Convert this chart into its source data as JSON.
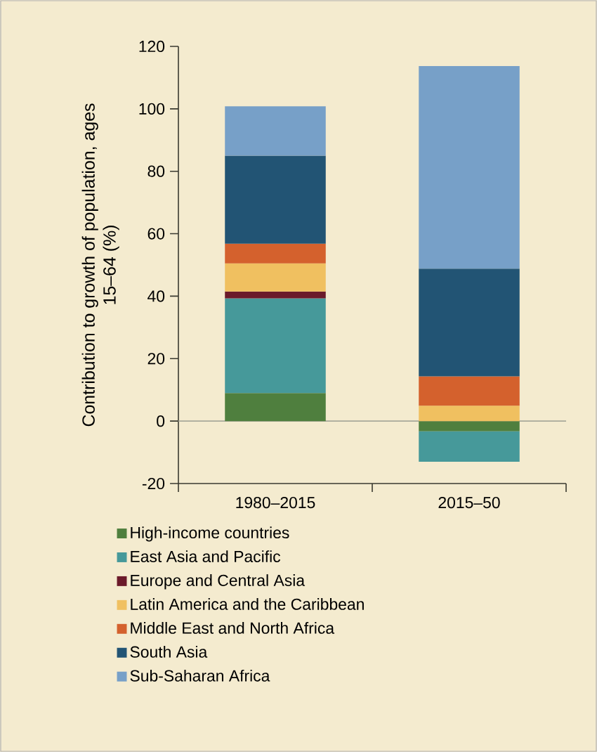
{
  "chart_data": {
    "type": "bar",
    "stacked": true,
    "ylabel": "Contribution to growth of population, ages 15–64 (%)",
    "categories": [
      "1980–2015",
      "2015–50"
    ],
    "series": [
      {
        "name": "High-income countries",
        "color": "#4f7f3e",
        "values": [
          9,
          -3.3
        ]
      },
      {
        "name": "East Asia and Pacific",
        "color": "#46999a",
        "values": [
          30.3,
          -9.7
        ]
      },
      {
        "name": "Europe  and Central Asia",
        "color": "#6b1a2a",
        "values": [
          2.2,
          0
        ]
      },
      {
        "name": "Latin America and the Caribbean",
        "color": "#f0c060",
        "values": [
          9,
          4.9
        ]
      },
      {
        "name": "Middle East and North Africa",
        "color": "#d4612d",
        "values": [
          6.3,
          9.4
        ]
      },
      {
        "name": "South Asia",
        "color": "#225474",
        "values": [
          28.2,
          34.5
        ]
      },
      {
        "name": "Sub-Saharan Africa",
        "color": "#77a0c8",
        "values": [
          15.8,
          64.9
        ]
      }
    ],
    "ylim": [
      -20,
      120
    ],
    "yticks": [
      -20,
      0,
      20,
      40,
      60,
      80,
      100,
      120
    ],
    "ref_lines": [
      {
        "axis": "y",
        "value": 0,
        "color": "#a8a89a"
      }
    ],
    "legend": "bottom"
  }
}
